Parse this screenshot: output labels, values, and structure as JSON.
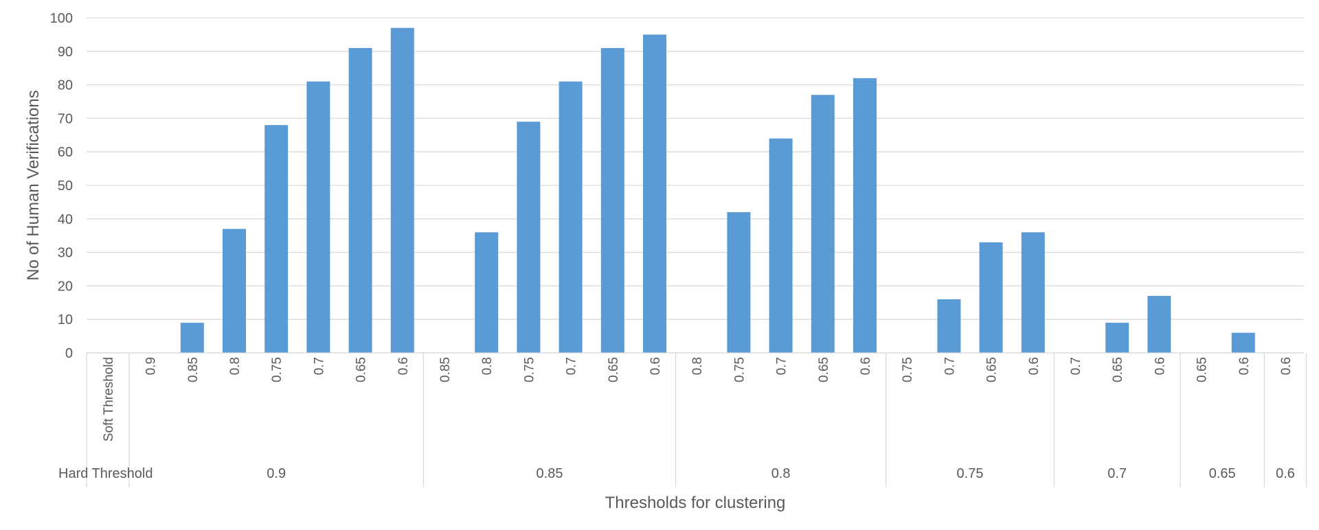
{
  "chart_data": {
    "type": "bar",
    "title": "",
    "xlabel": "Thresholds for clustering",
    "ylabel": "No of Human Verifications",
    "ylim": [
      0,
      100
    ],
    "yticks": [
      0,
      10,
      20,
      30,
      40,
      50,
      60,
      70,
      80,
      90,
      100
    ],
    "grid": true,
    "legend": "none",
    "bar_color": "#5B9BD5",
    "row_labels": {
      "inner": "Soft Threshold",
      "outer": "Hard Threshold"
    },
    "groups": [
      {
        "hard": "0.9",
        "soft": [
          "0.9",
          "0.85",
          "0.8",
          "0.75",
          "0.7",
          "0.65",
          "0.6"
        ],
        "values": [
          0,
          9,
          37,
          68,
          81,
          91,
          97
        ]
      },
      {
        "hard": "0.85",
        "soft": [
          "0.85",
          "0.8",
          "0.75",
          "0.7",
          "0.65",
          "0.6"
        ],
        "values": [
          0,
          36,
          69,
          81,
          91,
          95
        ]
      },
      {
        "hard": "0.8",
        "soft": [
          "0.8",
          "0.75",
          "0.7",
          "0.65",
          "0.6"
        ],
        "values": [
          0,
          42,
          64,
          77,
          82
        ]
      },
      {
        "hard": "0.75",
        "soft": [
          "0.75",
          "0.7",
          "0.65",
          "0.6"
        ],
        "values": [
          0,
          16,
          33,
          36
        ]
      },
      {
        "hard": "0.7",
        "soft": [
          "0.7",
          "0.65",
          "0.6"
        ],
        "values": [
          0,
          9,
          17
        ]
      },
      {
        "hard": "0.65",
        "soft": [
          "0.65",
          "0.6"
        ],
        "values": [
          0,
          6
        ]
      },
      {
        "hard": "0.6",
        "soft": [
          "0.6"
        ],
        "values": [
          0
        ]
      }
    ]
  }
}
